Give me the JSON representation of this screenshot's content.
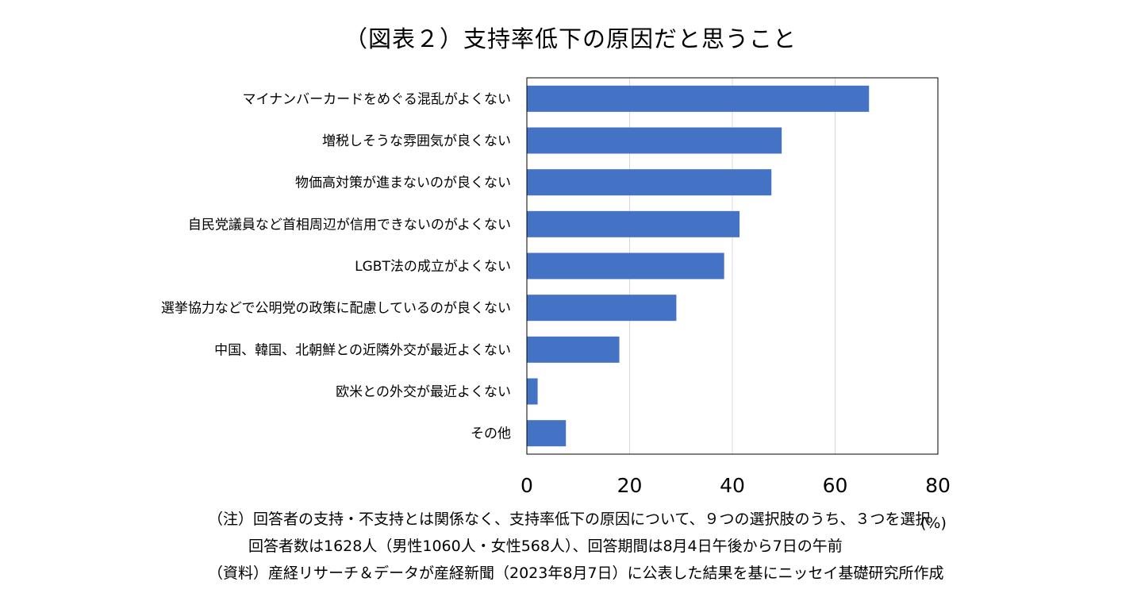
{
  "chart_data": {
    "type": "bar",
    "orientation": "horizontal",
    "title": "（図表２）支持率低下の原因だと思うこと",
    "categories": [
      "マイナンバーカードをめぐる混乱がよくない",
      "増税しそうな雰囲気が良くない",
      "物価高対策が進まないのが良くない",
      "自民党議員など首相周辺が信用できないのがよくない",
      "LGBT法の成立がよくない",
      "選挙協力などで公明党の政策に配慮しているのが良くない",
      "中国、韓国、北朝鮮との近隣外交が最近よくない",
      "欧米との外交が最近よくない",
      "その他"
    ],
    "values": [
      66.6,
      49.6,
      47.6,
      41.4,
      38.4,
      29.1,
      18.0,
      2.1,
      7.6
    ],
    "xlim": [
      0,
      80
    ],
    "xticks": [
      "0",
      "20",
      "40",
      "60",
      "80"
    ],
    "xunit": "(%)",
    "grid": true,
    "bar_color": "#4472c4"
  },
  "notes": [
    "（注）回答者の支持・不支持とは関係なく、支持率低下の原因について、９つの選択肢のうち、３つを選択",
    "回答者数は1628人（男性1060人・女性568人）、回答期間は8月4日午後から7日の午前",
    "（資料）産経リサーチ＆データが産経新聞（2023年8月7日）に公表した結果を基にニッセイ基礎研究所作成"
  ]
}
